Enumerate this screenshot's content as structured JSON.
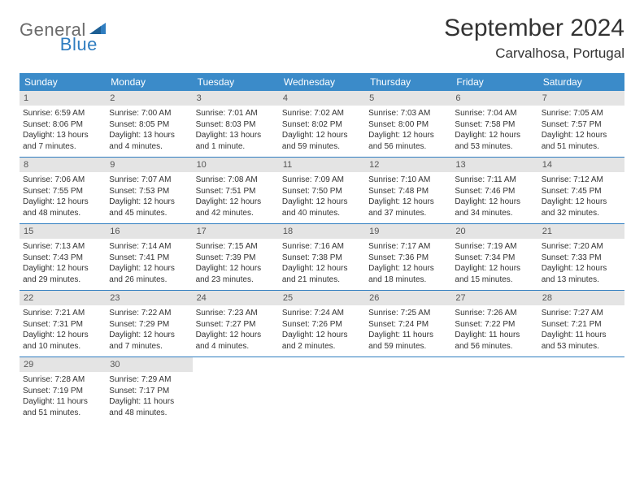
{
  "logo": {
    "text1": "General",
    "text2": "Blue"
  },
  "title": "September 2024",
  "location": "Carvalhosa, Portugal",
  "colors": {
    "header_bg": "#3b8bc9",
    "header_text": "#ffffff",
    "daynum_bg": "#e4e4e4",
    "daynum_text": "#555555",
    "border": "#2f7dc0",
    "body_text": "#333333",
    "logo_gray": "#6b6b6b",
    "logo_blue": "#2f7dc0",
    "page_bg": "#ffffff"
  },
  "day_names": [
    "Sunday",
    "Monday",
    "Tuesday",
    "Wednesday",
    "Thursday",
    "Friday",
    "Saturday"
  ],
  "weeks": [
    [
      {
        "n": "1",
        "sr": "Sunrise: 6:59 AM",
        "ss": "Sunset: 8:06 PM",
        "d1": "Daylight: 13 hours",
        "d2": "and 7 minutes."
      },
      {
        "n": "2",
        "sr": "Sunrise: 7:00 AM",
        "ss": "Sunset: 8:05 PM",
        "d1": "Daylight: 13 hours",
        "d2": "and 4 minutes."
      },
      {
        "n": "3",
        "sr": "Sunrise: 7:01 AM",
        "ss": "Sunset: 8:03 PM",
        "d1": "Daylight: 13 hours",
        "d2": "and 1 minute."
      },
      {
        "n": "4",
        "sr": "Sunrise: 7:02 AM",
        "ss": "Sunset: 8:02 PM",
        "d1": "Daylight: 12 hours",
        "d2": "and 59 minutes."
      },
      {
        "n": "5",
        "sr": "Sunrise: 7:03 AM",
        "ss": "Sunset: 8:00 PM",
        "d1": "Daylight: 12 hours",
        "d2": "and 56 minutes."
      },
      {
        "n": "6",
        "sr": "Sunrise: 7:04 AM",
        "ss": "Sunset: 7:58 PM",
        "d1": "Daylight: 12 hours",
        "d2": "and 53 minutes."
      },
      {
        "n": "7",
        "sr": "Sunrise: 7:05 AM",
        "ss": "Sunset: 7:57 PM",
        "d1": "Daylight: 12 hours",
        "d2": "and 51 minutes."
      }
    ],
    [
      {
        "n": "8",
        "sr": "Sunrise: 7:06 AM",
        "ss": "Sunset: 7:55 PM",
        "d1": "Daylight: 12 hours",
        "d2": "and 48 minutes."
      },
      {
        "n": "9",
        "sr": "Sunrise: 7:07 AM",
        "ss": "Sunset: 7:53 PM",
        "d1": "Daylight: 12 hours",
        "d2": "and 45 minutes."
      },
      {
        "n": "10",
        "sr": "Sunrise: 7:08 AM",
        "ss": "Sunset: 7:51 PM",
        "d1": "Daylight: 12 hours",
        "d2": "and 42 minutes."
      },
      {
        "n": "11",
        "sr": "Sunrise: 7:09 AM",
        "ss": "Sunset: 7:50 PM",
        "d1": "Daylight: 12 hours",
        "d2": "and 40 minutes."
      },
      {
        "n": "12",
        "sr": "Sunrise: 7:10 AM",
        "ss": "Sunset: 7:48 PM",
        "d1": "Daylight: 12 hours",
        "d2": "and 37 minutes."
      },
      {
        "n": "13",
        "sr": "Sunrise: 7:11 AM",
        "ss": "Sunset: 7:46 PM",
        "d1": "Daylight: 12 hours",
        "d2": "and 34 minutes."
      },
      {
        "n": "14",
        "sr": "Sunrise: 7:12 AM",
        "ss": "Sunset: 7:45 PM",
        "d1": "Daylight: 12 hours",
        "d2": "and 32 minutes."
      }
    ],
    [
      {
        "n": "15",
        "sr": "Sunrise: 7:13 AM",
        "ss": "Sunset: 7:43 PM",
        "d1": "Daylight: 12 hours",
        "d2": "and 29 minutes."
      },
      {
        "n": "16",
        "sr": "Sunrise: 7:14 AM",
        "ss": "Sunset: 7:41 PM",
        "d1": "Daylight: 12 hours",
        "d2": "and 26 minutes."
      },
      {
        "n": "17",
        "sr": "Sunrise: 7:15 AM",
        "ss": "Sunset: 7:39 PM",
        "d1": "Daylight: 12 hours",
        "d2": "and 23 minutes."
      },
      {
        "n": "18",
        "sr": "Sunrise: 7:16 AM",
        "ss": "Sunset: 7:38 PM",
        "d1": "Daylight: 12 hours",
        "d2": "and 21 minutes."
      },
      {
        "n": "19",
        "sr": "Sunrise: 7:17 AM",
        "ss": "Sunset: 7:36 PM",
        "d1": "Daylight: 12 hours",
        "d2": "and 18 minutes."
      },
      {
        "n": "20",
        "sr": "Sunrise: 7:19 AM",
        "ss": "Sunset: 7:34 PM",
        "d1": "Daylight: 12 hours",
        "d2": "and 15 minutes."
      },
      {
        "n": "21",
        "sr": "Sunrise: 7:20 AM",
        "ss": "Sunset: 7:33 PM",
        "d1": "Daylight: 12 hours",
        "d2": "and 13 minutes."
      }
    ],
    [
      {
        "n": "22",
        "sr": "Sunrise: 7:21 AM",
        "ss": "Sunset: 7:31 PM",
        "d1": "Daylight: 12 hours",
        "d2": "and 10 minutes."
      },
      {
        "n": "23",
        "sr": "Sunrise: 7:22 AM",
        "ss": "Sunset: 7:29 PM",
        "d1": "Daylight: 12 hours",
        "d2": "and 7 minutes."
      },
      {
        "n": "24",
        "sr": "Sunrise: 7:23 AM",
        "ss": "Sunset: 7:27 PM",
        "d1": "Daylight: 12 hours",
        "d2": "and 4 minutes."
      },
      {
        "n": "25",
        "sr": "Sunrise: 7:24 AM",
        "ss": "Sunset: 7:26 PM",
        "d1": "Daylight: 12 hours",
        "d2": "and 2 minutes."
      },
      {
        "n": "26",
        "sr": "Sunrise: 7:25 AM",
        "ss": "Sunset: 7:24 PM",
        "d1": "Daylight: 11 hours",
        "d2": "and 59 minutes."
      },
      {
        "n": "27",
        "sr": "Sunrise: 7:26 AM",
        "ss": "Sunset: 7:22 PM",
        "d1": "Daylight: 11 hours",
        "d2": "and 56 minutes."
      },
      {
        "n": "28",
        "sr": "Sunrise: 7:27 AM",
        "ss": "Sunset: 7:21 PM",
        "d1": "Daylight: 11 hours",
        "d2": "and 53 minutes."
      }
    ],
    [
      {
        "n": "29",
        "sr": "Sunrise: 7:28 AM",
        "ss": "Sunset: 7:19 PM",
        "d1": "Daylight: 11 hours",
        "d2": "and 51 minutes."
      },
      {
        "n": "30",
        "sr": "Sunrise: 7:29 AM",
        "ss": "Sunset: 7:17 PM",
        "d1": "Daylight: 11 hours",
        "d2": "and 48 minutes."
      },
      null,
      null,
      null,
      null,
      null
    ]
  ]
}
